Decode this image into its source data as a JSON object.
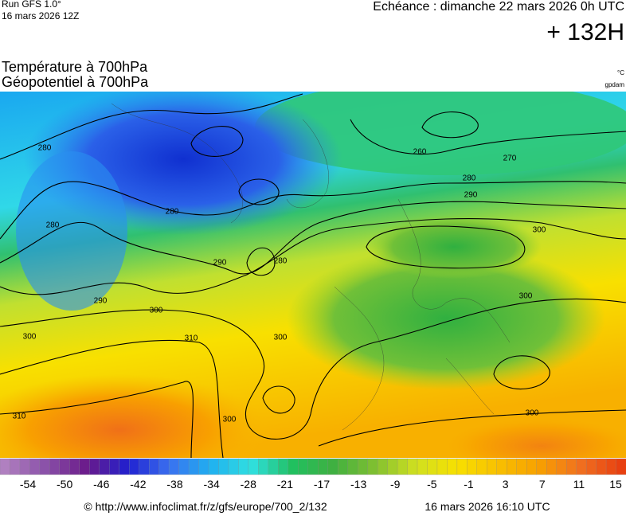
{
  "header": {
    "run": "Run GFS 1.0°",
    "run_date": "16 mars 2026 12Z",
    "valid": "Echéance : dimanche 22 mars 2026 0h UTC",
    "lead": "+ 132H"
  },
  "titles": {
    "temperature": "Température à 700hPa",
    "geopotential": "Géopotentiel à 700hPa",
    "temp_unit": "°C",
    "geo_unit": "gpdam"
  },
  "map": {
    "contour_labels": [
      280,
      280,
      280,
      290,
      280,
      290,
      300,
      310,
      300,
      300,
      310,
      300,
      260,
      270,
      280,
      290,
      300,
      300,
      300
    ]
  },
  "colorbar": {
    "labels": [
      -54,
      -50,
      -46,
      -42,
      -38,
      -34,
      -28,
      -21,
      -17,
      -13,
      -9,
      -5,
      -1,
      3,
      7,
      11,
      15
    ],
    "colors": [
      "#b080c0",
      "#8a50a8",
      "#6a1a8a",
      "#2020d0",
      "#3a70f0",
      "#20b0f0",
      "#30e0e0",
      "#20c060",
      "#40b040",
      "#80c030",
      "#d0e020",
      "#f8e000",
      "#f8c000",
      "#f8a000",
      "#f07020",
      "#e84010"
    ]
  },
  "footer": {
    "url": "© http://www.infoclimat.fr/z/gfs/europe/700_2/132",
    "generated": "16 mars 2026 16:10 UTC"
  }
}
